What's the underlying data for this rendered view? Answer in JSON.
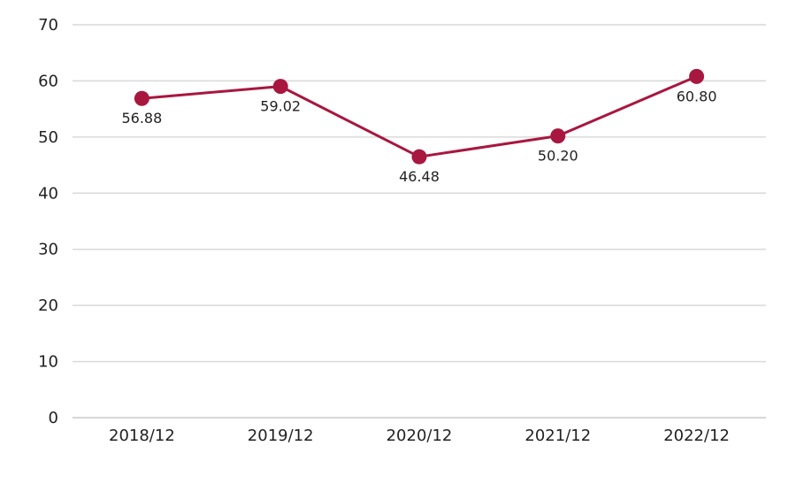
{
  "chart_data": {
    "type": "line",
    "categories": [
      "2018/12",
      "2019/12",
      "2020/12",
      "2021/12",
      "2022/12"
    ],
    "series": [
      {
        "values": [
          56.88,
          59.02,
          46.48,
          50.2,
          60.8
        ],
        "value_labels": [
          "56.88",
          "59.02",
          "46.48",
          "50.20",
          "60.80"
        ],
        "color": "#a8173f"
      }
    ],
    "ylim": [
      0,
      70
    ],
    "yticks": [
      0,
      10,
      20,
      30,
      40,
      50,
      60,
      70
    ],
    "grid": true,
    "gridline_color": "#d9d9d9",
    "data_label_placement": [
      "below",
      "below",
      "below",
      "below",
      "below"
    ]
  }
}
